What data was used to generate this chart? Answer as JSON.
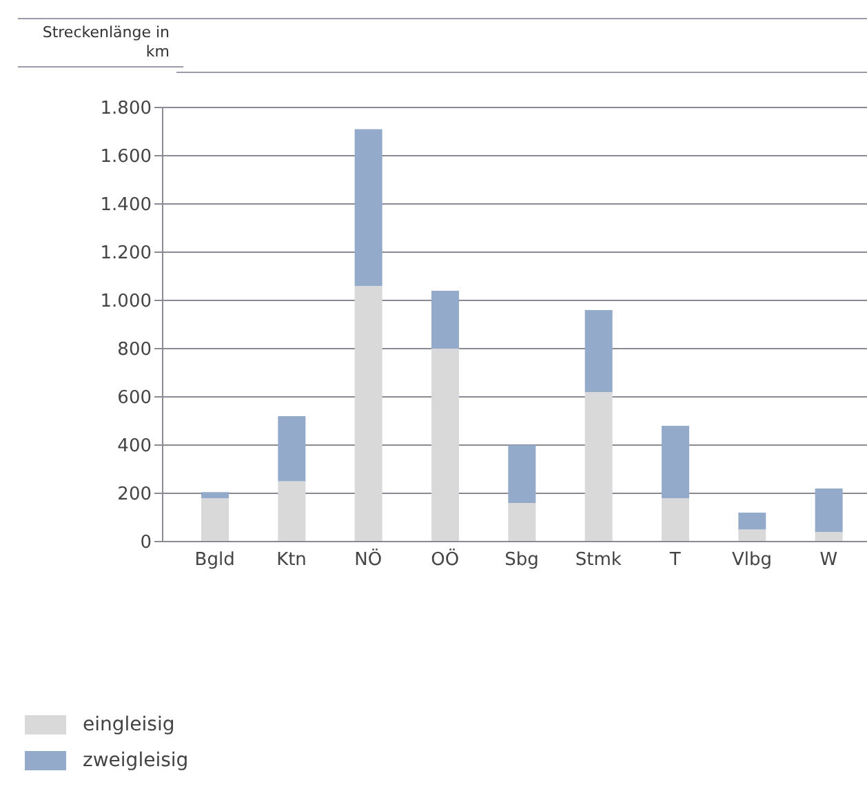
{
  "chart_data": {
    "type": "bar",
    "ylabel": "Streckenlänge in km",
    "categories": [
      "Bgld",
      "Ktn",
      "NÖ",
      "OÖ",
      "Sbg",
      "Stmk",
      "T",
      "Vlbg",
      "W"
    ],
    "stacked": true,
    "series": [
      {
        "name": "eingleisig",
        "color": "#d9d9d9",
        "values": [
          180,
          250,
          1060,
          800,
          160,
          620,
          180,
          50,
          40
        ]
      },
      {
        "name": "zweigleisig",
        "color": "#93aacb",
        "values": [
          25,
          270,
          650,
          240,
          240,
          340,
          300,
          70,
          180
        ]
      }
    ],
    "ylim": [
      0,
      1800
    ],
    "yticks": [
      0,
      200,
      400,
      600,
      800,
      {
        "value": 1000,
        "label": "1.000"
      },
      {
        "value": 1200,
        "label": "1.200"
      },
      {
        "value": 1400,
        "label": "1.400"
      },
      {
        "value": 1600,
        "label": "1.600"
      },
      {
        "value": 1800,
        "label": "1.800"
      }
    ],
    "grid": "y",
    "legend": "bottom left"
  }
}
